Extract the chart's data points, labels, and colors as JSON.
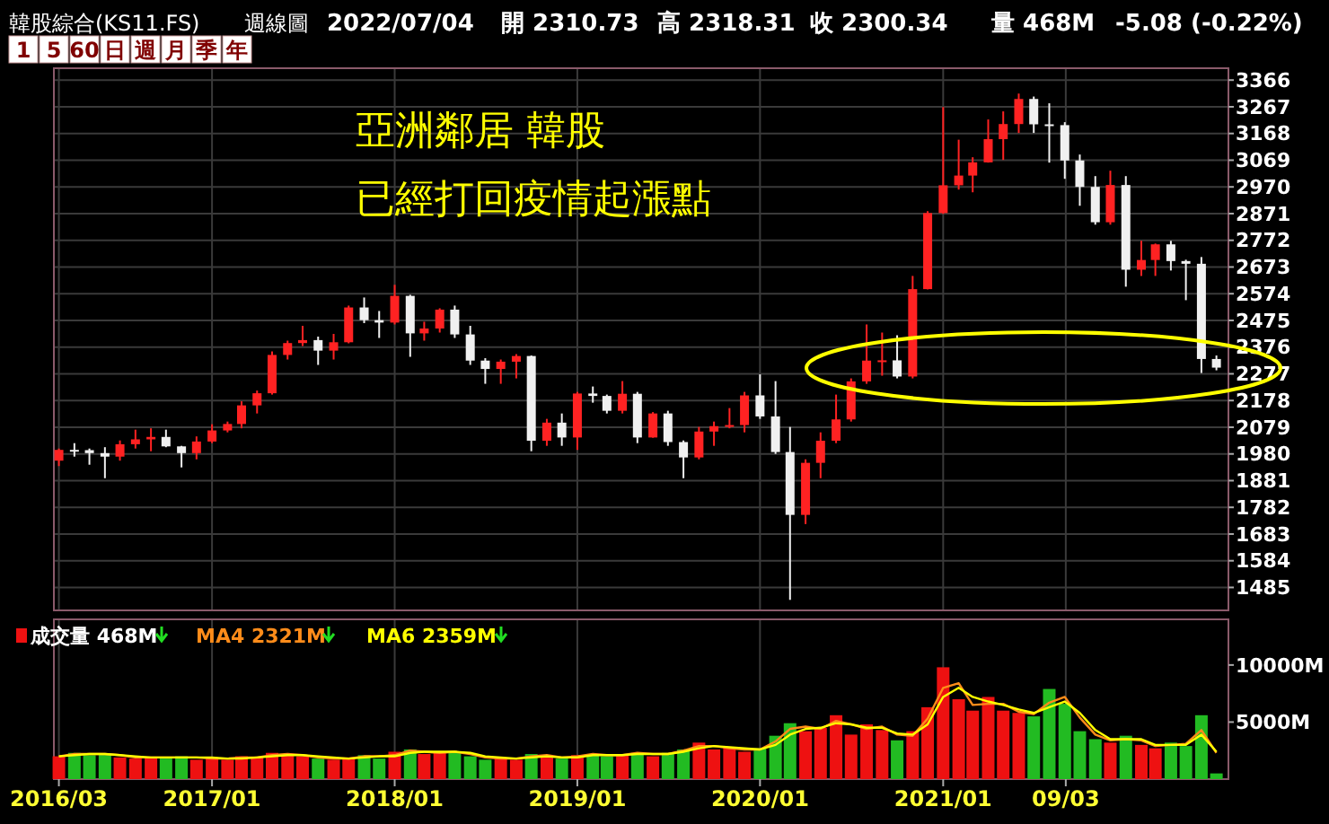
{
  "chart_data": [
    {
      "type": "candlestick",
      "title": "亞洲鄰居 韓股",
      "subtitle": "已經打回疫情起漲點",
      "annotations": [
        "韓股綜合(KS11.FS)",
        "週線圖",
        "2022/07/04",
        "開 2310.73",
        "高 2318.31",
        "收 2300.34",
        "量 468M",
        "-5.08 (-0.22%)",
        "1",
        "5",
        "60",
        "日",
        "週",
        "月",
        "季",
        "年"
      ],
      "x": [
        "2016-03",
        "2016-04",
        "2016-05",
        "2016-06",
        "2016-07",
        "2016-08",
        "2016-09",
        "2016-10",
        "2016-11",
        "2016-12",
        "2017-01",
        "2017-02",
        "2017-03",
        "2017-04",
        "2017-05",
        "2017-06",
        "2017-07",
        "2017-08",
        "2017-09",
        "2017-10",
        "2017-11",
        "2017-12",
        "2018-01",
        "2018-02",
        "2018-03",
        "2018-04",
        "2018-05",
        "2018-06",
        "2018-07",
        "2018-08",
        "2018-09",
        "2018-10",
        "2018-11",
        "2018-12",
        "2019-01",
        "2019-02",
        "2019-03",
        "2019-04",
        "2019-05",
        "2019-06",
        "2019-07",
        "2019-08",
        "2019-09",
        "2019-10",
        "2019-11",
        "2019-12",
        "2020-01",
        "2020-02",
        "2020-03",
        "2020-04",
        "2020-05",
        "2020-06",
        "2020-07",
        "2020-08",
        "2020-09",
        "2020-10",
        "2020-11",
        "2020-12",
        "2021-01",
        "2021-02",
        "2021-03",
        "2021-04",
        "2021-05",
        "2021-06",
        "2021-07",
        "2021-08",
        "2021-09",
        "2021-10",
        "2021-11",
        "2021-12",
        "2022-01",
        "2022-02",
        "2022-03",
        "2022-04",
        "2022-05",
        "2022-06",
        "2022-07"
      ],
      "ohlc": [
        [
          1955,
          2000,
          1935,
          1995
        ],
        [
          1995,
          2020,
          1970,
          1994
        ],
        [
          1994,
          2000,
          1940,
          1983
        ],
        [
          1983,
          2005,
          1890,
          1970
        ],
        [
          1970,
          2030,
          1955,
          2016
        ],
        [
          2016,
          2070,
          2000,
          2034
        ],
        [
          2034,
          2075,
          1990,
          2043
        ],
        [
          2043,
          2070,
          2005,
          2008
        ],
        [
          2008,
          2010,
          1930,
          1983
        ],
        [
          1983,
          2045,
          1960,
          2026
        ],
        [
          2026,
          2090,
          2020,
          2067
        ],
        [
          2067,
          2100,
          2060,
          2091
        ],
        [
          2091,
          2175,
          2075,
          2160
        ],
        [
          2160,
          2215,
          2130,
          2205
        ],
        [
          2205,
          2360,
          2200,
          2347
        ],
        [
          2347,
          2400,
          2330,
          2391
        ],
        [
          2391,
          2455,
          2380,
          2402
        ],
        [
          2402,
          2415,
          2310,
          2363
        ],
        [
          2363,
          2425,
          2330,
          2394
        ],
        [
          2394,
          2530,
          2390,
          2523
        ],
        [
          2523,
          2560,
          2465,
          2476
        ],
        [
          2476,
          2510,
          2410,
          2467
        ],
        [
          2467,
          2607,
          2460,
          2566
        ],
        [
          2566,
          2570,
          2340,
          2427
        ],
        [
          2427,
          2470,
          2400,
          2445
        ],
        [
          2445,
          2520,
          2430,
          2515
        ],
        [
          2515,
          2530,
          2410,
          2423
        ],
        [
          2423,
          2455,
          2310,
          2326
        ],
        [
          2326,
          2335,
          2240,
          2295
        ],
        [
          2295,
          2330,
          2240,
          2322
        ],
        [
          2322,
          2350,
          2260,
          2343
        ],
        [
          2343,
          2345,
          1990,
          2029
        ],
        [
          2029,
          2110,
          2010,
          2096
        ],
        [
          2096,
          2130,
          2010,
          2041
        ],
        [
          2041,
          2210,
          1995,
          2204
        ],
        [
          2204,
          2230,
          2170,
          2195
        ],
        [
          2195,
          2200,
          2130,
          2140
        ],
        [
          2140,
          2250,
          2130,
          2203
        ],
        [
          2203,
          2210,
          2020,
          2041
        ],
        [
          2041,
          2135,
          2040,
          2130
        ],
        [
          2130,
          2140,
          2010,
          2024
        ],
        [
          2024,
          2030,
          1890,
          1967
        ],
        [
          1967,
          2080,
          1960,
          2063
        ],
        [
          2063,
          2100,
          2010,
          2083
        ],
        [
          2083,
          2150,
          2075,
          2087
        ],
        [
          2087,
          2210,
          2060,
          2197
        ],
        [
          2197,
          2275,
          2110,
          2119
        ],
        [
          2119,
          2250,
          1980,
          1987
        ],
        [
          1987,
          2080,
          1439,
          1754
        ],
        [
          1754,
          1960,
          1720,
          1947
        ],
        [
          1947,
          2060,
          1890,
          2029
        ],
        [
          2029,
          2200,
          2020,
          2108
        ],
        [
          2108,
          2260,
          2100,
          2249
        ],
        [
          2249,
          2460,
          2240,
          2326
        ],
        [
          2326,
          2430,
          2270,
          2327
        ],
        [
          2327,
          2420,
          2260,
          2267
        ],
        [
          2267,
          2640,
          2260,
          2591
        ],
        [
          2591,
          2880,
          2590,
          2873
        ],
        [
          2873,
          3266,
          2870,
          2976
        ],
        [
          2976,
          3145,
          2960,
          3012
        ],
        [
          3012,
          3080,
          2950,
          3061
        ],
        [
          3061,
          3220,
          3060,
          3147
        ],
        [
          3147,
          3250,
          3070,
          3203
        ],
        [
          3203,
          3316,
          3170,
          3296
        ],
        [
          3296,
          3305,
          3170,
          3202
        ],
        [
          3202,
          3280,
          3060,
          3199
        ],
        [
          3199,
          3210,
          3000,
          3068
        ],
        [
          3068,
          3090,
          2900,
          2970
        ],
        [
          2970,
          3010,
          2830,
          2839
        ],
        [
          2839,
          3030,
          2830,
          2977
        ],
        [
          2977,
          3010,
          2600,
          2663
        ],
        [
          2663,
          2770,
          2640,
          2699
        ],
        [
          2699,
          2760,
          2640,
          2757
        ],
        [
          2757,
          2770,
          2660,
          2695
        ],
        [
          2695,
          2700,
          2550,
          2685
        ],
        [
          2685,
          2710,
          2280,
          2332
        ],
        [
          2332,
          2345,
          2290,
          2300
        ]
      ],
      "colors": [
        "#ff2222",
        "#f0f0f0",
        "#f0f0f0",
        "#f0f0f0",
        "#ff2222",
        "#ff2222",
        "#ff2222",
        "#f0f0f0",
        "#f0f0f0",
        "#ff2222",
        "#ff2222",
        "#ff2222",
        "#ff2222",
        "#ff2222",
        "#ff2222",
        "#ff2222",
        "#ff2222",
        "#f0f0f0",
        "#ff2222",
        "#ff2222",
        "#f0f0f0",
        "#f0f0f0",
        "#ff2222",
        "#f0f0f0",
        "#ff2222",
        "#ff2222",
        "#f0f0f0",
        "#f0f0f0",
        "#f0f0f0",
        "#ff2222",
        "#ff2222",
        "#f0f0f0",
        "#ff2222",
        "#f0f0f0",
        "#ff2222",
        "#f0f0f0",
        "#f0f0f0",
        "#ff2222",
        "#f0f0f0",
        "#ff2222",
        "#f0f0f0",
        "#f0f0f0",
        "#ff2222",
        "#ff2222",
        "#ff2222",
        "#ff2222",
        "#f0f0f0",
        "#f0f0f0",
        "#f0f0f0",
        "#ff2222",
        "#ff2222",
        "#ff2222",
        "#ff2222",
        "#ff2222",
        "#ff2222",
        "#f0f0f0",
        "#ff2222",
        "#ff2222",
        "#ff2222",
        "#ff2222",
        "#ff2222",
        "#ff2222",
        "#ff2222",
        "#ff2222",
        "#f0f0f0",
        "#f0f0f0",
        "#f0f0f0",
        "#f0f0f0",
        "#f0f0f0",
        "#ff2222",
        "#f0f0f0",
        "#ff2222",
        "#ff2222",
        "#f0f0f0",
        "#f0f0f0",
        "#f0f0f0",
        "#f0f0f0"
      ],
      "xlim": [
        "2016-02-20",
        "2022-07-25"
      ],
      "xticks": [
        {
          "value": "2016-03",
          "label": null
        },
        {
          "value": "2017-01",
          "label": null
        },
        {
          "value": "2018-01",
          "label": null
        },
        {
          "value": "2019-01",
          "label": null
        },
        {
          "value": "2020-01",
          "label": null
        },
        {
          "value": "2021-01",
          "label": null
        },
        {
          "value": "2021-09-03",
          "label": null
        }
      ],
      "ylim": [
        1400,
        3410
      ],
      "yticks": [
        1485,
        1584,
        1683,
        1782,
        1881,
        1980,
        2079,
        2178,
        2277,
        2376,
        2475,
        2574,
        2673,
        2772,
        2871,
        2970,
        3069,
        3168,
        3267,
        3366
      ],
      "grid": true,
      "tick_labels": "y"
    },
    {
      "type": "bar",
      "x": [
        "2016-03",
        "2016-04",
        "2016-05",
        "2016-06",
        "2016-07",
        "2016-08",
        "2016-09",
        "2016-10",
        "2016-11",
        "2016-12",
        "2017-01",
        "2017-02",
        "2017-03",
        "2017-04",
        "2017-05",
        "2017-06",
        "2017-07",
        "2017-08",
        "2017-09",
        "2017-10",
        "2017-11",
        "2017-12",
        "2018-01",
        "2018-02",
        "2018-03",
        "2018-04",
        "2018-05",
        "2018-06",
        "2018-07",
        "2018-08",
        "2018-09",
        "2018-10",
        "2018-11",
        "2018-12",
        "2019-01",
        "2019-02",
        "2019-03",
        "2019-04",
        "2019-05",
        "2019-06",
        "2019-07",
        "2019-08",
        "2019-09",
        "2019-10",
        "2019-11",
        "2019-12",
        "2020-01",
        "2020-02",
        "2020-03",
        "2020-04",
        "2020-05",
        "2020-06",
        "2020-07",
        "2020-08",
        "2020-09",
        "2020-10",
        "2020-11",
        "2020-12",
        "2021-01",
        "2021-02",
        "2021-03",
        "2021-04",
        "2021-05",
        "2021-06",
        "2021-07",
        "2021-08",
        "2021-09",
        "2021-10",
        "2021-11",
        "2021-12",
        "2022-01",
        "2022-02",
        "2022-03",
        "2022-04",
        "2022-05",
        "2022-06",
        "2022-07"
      ],
      "series": [
        {
          "name": "成交量 468M",
          "type": "bar",
          "colors": [
            "#ee1111",
            "#22bb22",
            "#22bb22",
            "#22bb22",
            "#ee1111",
            "#ee1111",
            "#ee1111",
            "#22bb22",
            "#22bb22",
            "#ee1111",
            "#ee1111",
            "#ee1111",
            "#ee1111",
            "#ee1111",
            "#ee1111",
            "#ee1111",
            "#ee1111",
            "#22bb22",
            "#ee1111",
            "#ee1111",
            "#22bb22",
            "#22bb22",
            "#ee1111",
            "#22bb22",
            "#ee1111",
            "#ee1111",
            "#22bb22",
            "#22bb22",
            "#22bb22",
            "#ee1111",
            "#ee1111",
            "#22bb22",
            "#ee1111",
            "#22bb22",
            "#ee1111",
            "#22bb22",
            "#22bb22",
            "#ee1111",
            "#22bb22",
            "#ee1111",
            "#22bb22",
            "#22bb22",
            "#ee1111",
            "#ee1111",
            "#ee1111",
            "#ee1111",
            "#22bb22",
            "#22bb22",
            "#22bb22",
            "#ee1111",
            "#ee1111",
            "#ee1111",
            "#ee1111",
            "#ee1111",
            "#ee1111",
            "#22bb22",
            "#ee1111",
            "#ee1111",
            "#ee1111",
            "#ee1111",
            "#ee1111",
            "#ee1111",
            "#ee1111",
            "#ee1111",
            "#22bb22",
            "#22bb22",
            "#22bb22",
            "#22bb22",
            "#22bb22",
            "#ee1111",
            "#22bb22",
            "#ee1111",
            "#ee1111",
            "#22bb22",
            "#22bb22",
            "#22bb22",
            "#22bb22"
          ],
          "values": [
            2000,
            2300,
            2100,
            2200,
            1900,
            1800,
            1900,
            1800,
            2000,
            1700,
            1800,
            1700,
            2000,
            1900,
            2300,
            2100,
            2000,
            1800,
            1700,
            1900,
            2100,
            1800,
            2400,
            2600,
            2200,
            2400,
            2300,
            2000,
            1700,
            1800,
            1700,
            2200,
            1900,
            1800,
            2100,
            2200,
            2000,
            2200,
            2300,
            2000,
            2300,
            2600,
            3200,
            2600,
            2800,
            2400,
            2700,
            3800,
            4900,
            4200,
            4500,
            5600,
            3900,
            4800,
            4300,
            3400,
            4200,
            6300,
            9800,
            7000,
            6000,
            7200,
            6000,
            5800,
            5500,
            7900,
            6600,
            4200,
            3500,
            3200,
            3800,
            3000,
            2700,
            3200,
            2900,
            5600,
            500
          ]
        },
        {
          "name": "MA4 2321M",
          "type": "line",
          "color": "#ff8c1a",
          "values": [
            2000,
            2200,
            2200,
            2200,
            2100,
            1900,
            1900,
            1900,
            1900,
            1900,
            1800,
            1800,
            1900,
            1900,
            2100,
            2200,
            2100,
            1900,
            1800,
            1800,
            2000,
            2000,
            2100,
            2500,
            2400,
            2300,
            2400,
            2200,
            1900,
            1800,
            1800,
            2000,
            2100,
            1900,
            2000,
            2200,
            2100,
            2100,
            2300,
            2200,
            2200,
            2500,
            2900,
            2900,
            2700,
            2600,
            2600,
            3300,
            4400,
            4600,
            4400,
            5100,
            4800,
            4400,
            4600,
            3900,
            3800,
            5300,
            8000,
            8400,
            6500,
            6600,
            6600,
            5900,
            5700,
            6700,
            7200,
            5400,
            3900,
            3400,
            3500,
            3400,
            2900,
            3000,
            3100,
            4300,
            2300
          ]
        },
        {
          "name": "MA6 2359M",
          "type": "line",
          "color": "#ffff00",
          "values": [
            2000,
            2100,
            2200,
            2200,
            2100,
            2000,
            1900,
            1900,
            1900,
            1900,
            1900,
            1800,
            1800,
            1900,
            2000,
            2100,
            2100,
            2000,
            1900,
            1800,
            1900,
            2000,
            2000,
            2300,
            2400,
            2400,
            2400,
            2300,
            2000,
            1900,
            1800,
            1900,
            2000,
            1900,
            1900,
            2100,
            2100,
            2100,
            2200,
            2200,
            2200,
            2400,
            2700,
            2900,
            2800,
            2700,
            2600,
            3000,
            3900,
            4400,
            4500,
            4900,
            4800,
            4500,
            4500,
            4000,
            3900,
            4800,
            7200,
            8000,
            7200,
            6800,
            6500,
            6100,
            5800,
            6300,
            6800,
            5800,
            4300,
            3500,
            3500,
            3500,
            3000,
            3000,
            3000,
            3900,
            2400
          ]
        }
      ],
      "xlim": [
        "2016-02-20",
        "2022-07-25"
      ],
      "xticks": [
        {
          "value": "2016-03",
          "label": "2016/03"
        },
        {
          "value": "2017-01",
          "label": "2017/01"
        },
        {
          "value": "2018-01",
          "label": "2018/01"
        },
        {
          "value": "2019-01",
          "label": "2019/01"
        },
        {
          "value": "2020-01",
          "label": "2020/01"
        },
        {
          "value": "2021-01",
          "label": "2021/01"
        },
        {
          "value": "2021-09-03",
          "label": "09/03"
        }
      ],
      "ylim": [
        0,
        14000
      ],
      "yticks": [
        {
          "value": 5000,
          "label": "5000M"
        },
        {
          "value": 10000,
          "label": "10000M"
        }
      ],
      "grid": "x",
      "legend": "top left"
    }
  ]
}
